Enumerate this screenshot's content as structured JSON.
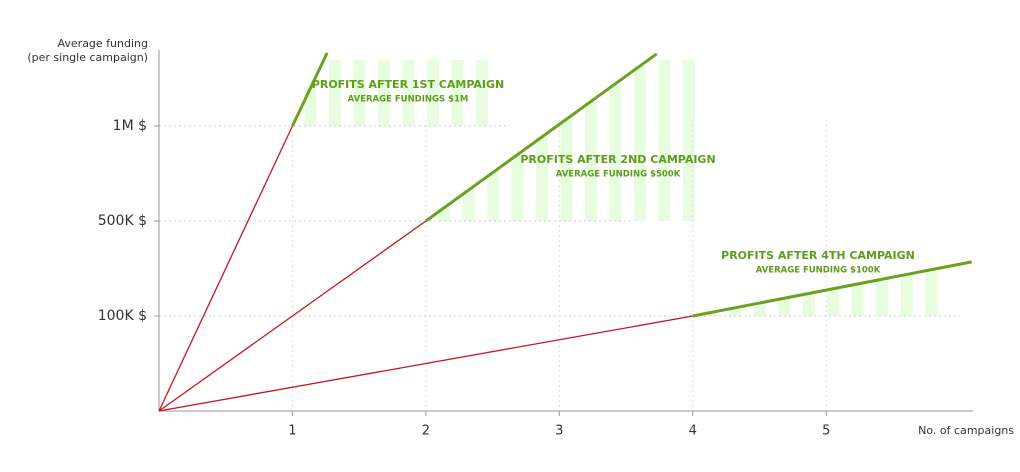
{
  "chart_data": {
    "type": "line",
    "y_axis_title": [
      "Average funding",
      "(per single campaign)"
    ],
    "x_axis_title": "No. of campaigns",
    "xlim": [
      0,
      6.1
    ],
    "xticks": [
      1,
      2,
      3,
      4,
      5
    ],
    "ylim": [
      0,
      3.8
    ],
    "yticks": [
      {
        "value": 1,
        "label": "100K $"
      },
      {
        "value": 2,
        "label": "500K $"
      },
      {
        "value": 3,
        "label": "1M $"
      }
    ],
    "series": [
      {
        "color": "#c8161e",
        "x": [
          0,
          1
        ],
        "values": [
          0,
          3
        ]
      },
      {
        "color": "#6aa121",
        "x": [
          1,
          1.26
        ],
        "values": [
          3,
          3.77
        ]
      },
      {
        "color": "#c8161e",
        "x": [
          0,
          2
        ],
        "values": [
          0,
          2
        ]
      },
      {
        "color": "#6aa121",
        "x": [
          2,
          3.73
        ],
        "values": [
          2,
          3.76
        ]
      },
      {
        "color": "#c8161e",
        "x": [
          0,
          4
        ],
        "values": [
          0,
          1
        ]
      },
      {
        "color": "#6aa121",
        "x": [
          4,
          6.09
        ],
        "values": [
          1,
          1.57
        ]
      }
    ],
    "annotations": [
      {
        "title": "PROFITS AFTER 1ST CAMPAIGN",
        "subtitle": "AVERAGE FUNDINGS $1M"
      },
      {
        "title": "PROFITS AFTER 2ND CAMPAIGN",
        "subtitle": "AVERAGE FUNDING  $500K"
      },
      {
        "title": "PROFITS AFTER 4TH CAMPAIGN",
        "subtitle": "AVERAGE FUNDING $100K"
      }
    ]
  }
}
